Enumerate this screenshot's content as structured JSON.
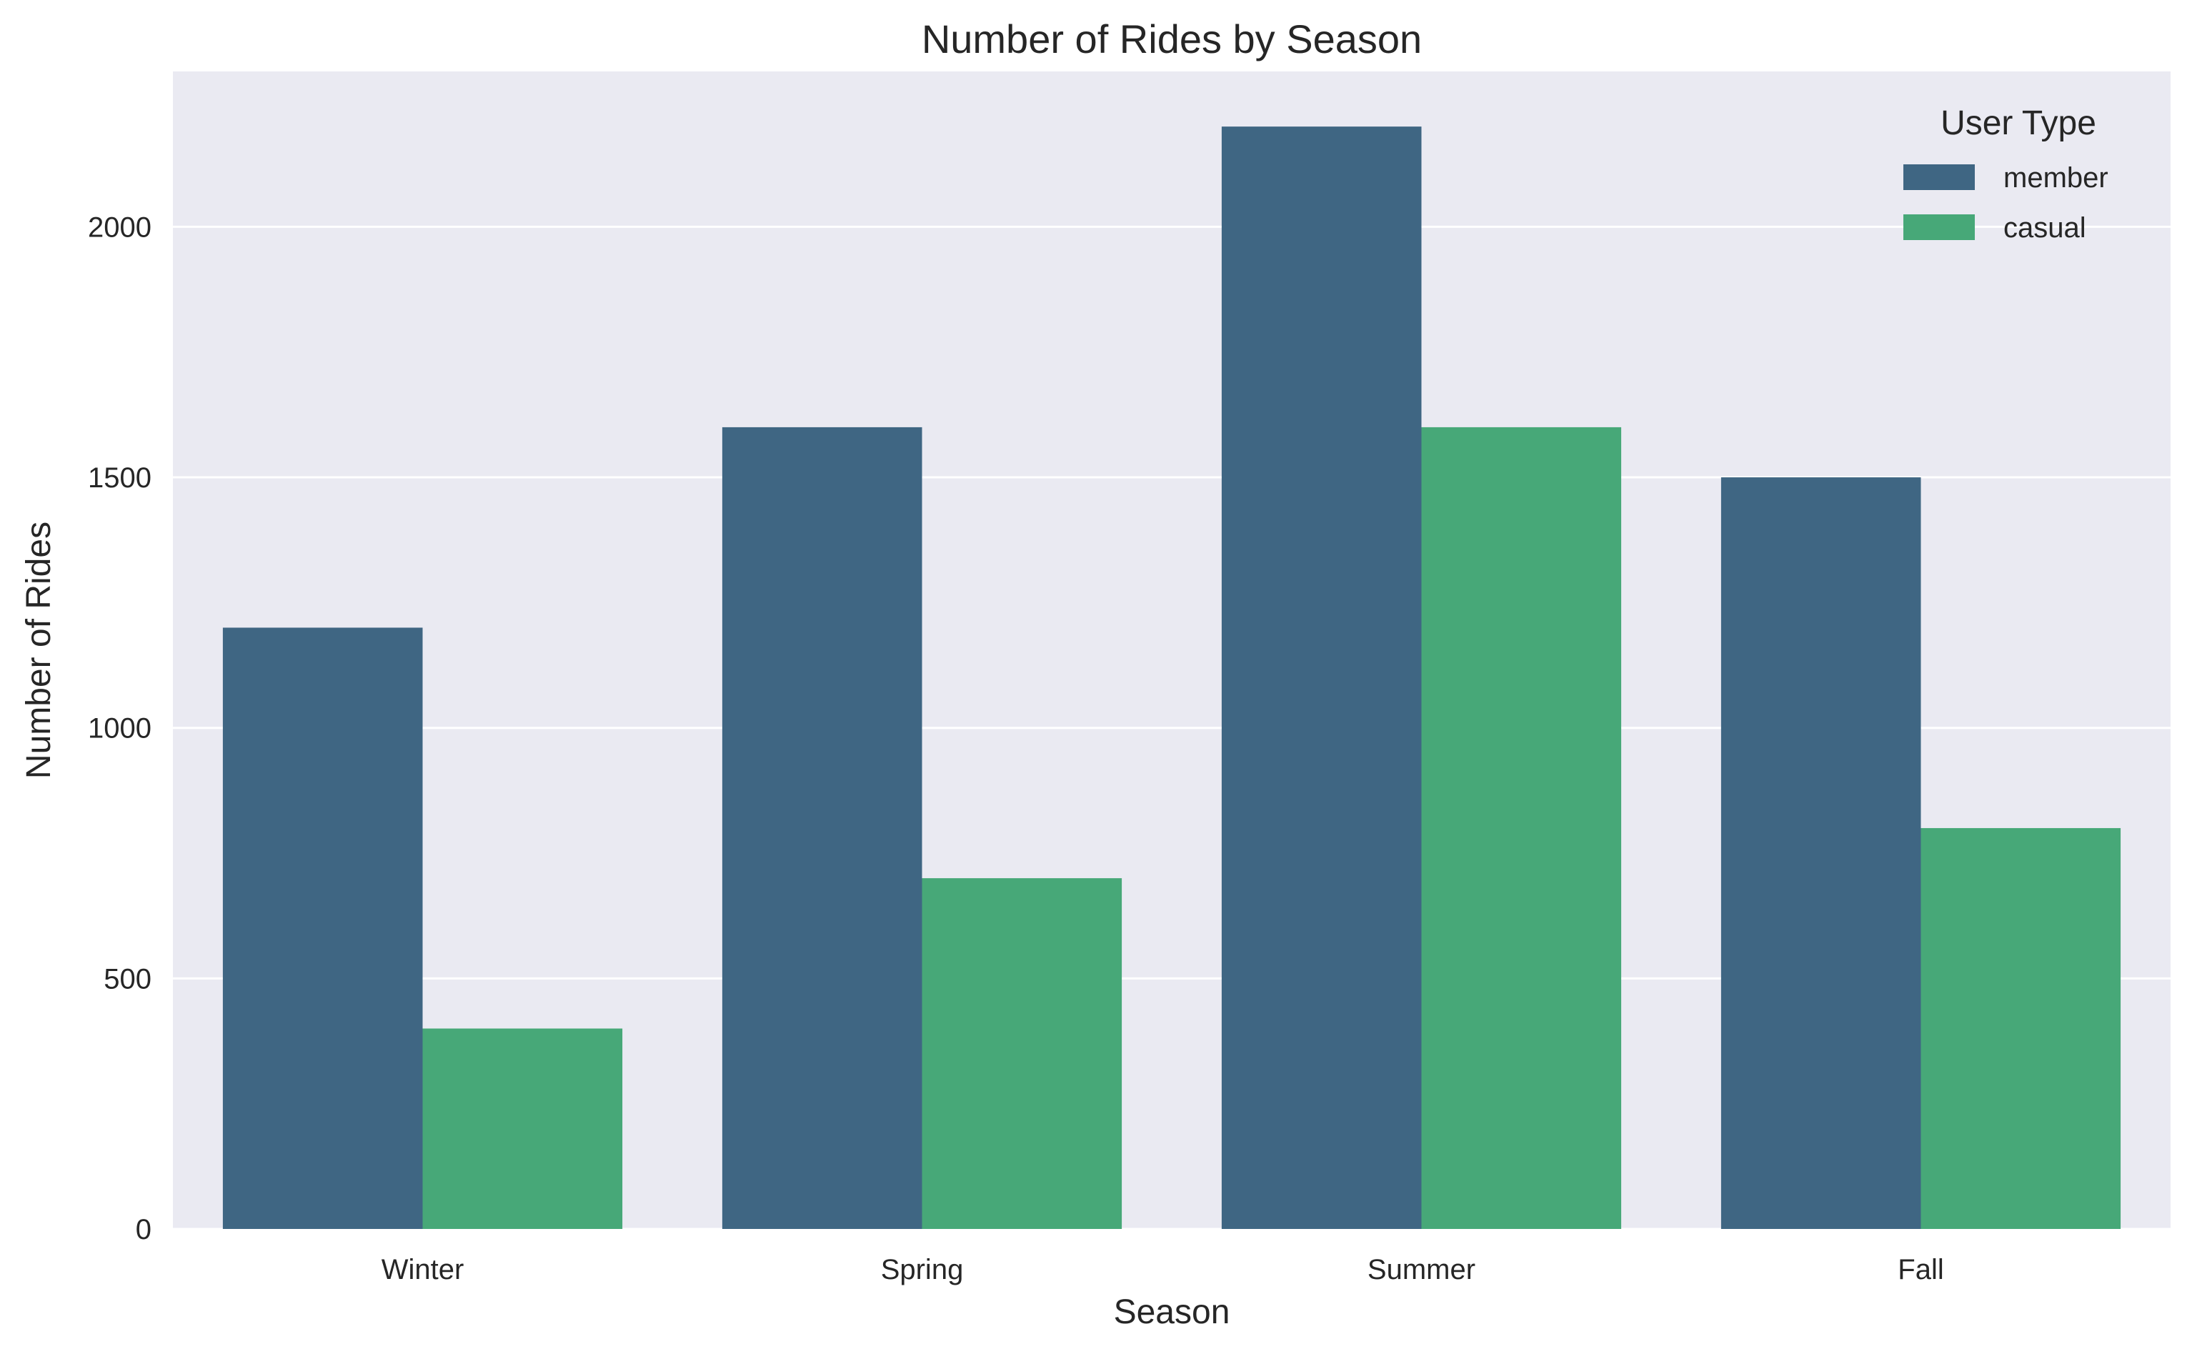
{
  "chart_data": {
    "type": "bar",
    "title": "Number of Rides by Season",
    "xlabel": "Season",
    "ylabel": "Number of Rides",
    "categories": [
      "Winter",
      "Spring",
      "Summer",
      "Fall"
    ],
    "series": [
      {
        "name": "member",
        "values": [
          1200,
          1600,
          2200,
          1500
        ],
        "color": "#3f6683"
      },
      {
        "name": "casual",
        "values": [
          400,
          700,
          1600,
          800
        ],
        "color": "#47a878"
      }
    ],
    "ylim": [
      0,
      2310
    ],
    "yticks": [
      0,
      500,
      1000,
      1500,
      2000
    ],
    "grid": true,
    "legend": {
      "title": "User Type",
      "placement": "top-right"
    },
    "background": "#eaeaf2"
  }
}
